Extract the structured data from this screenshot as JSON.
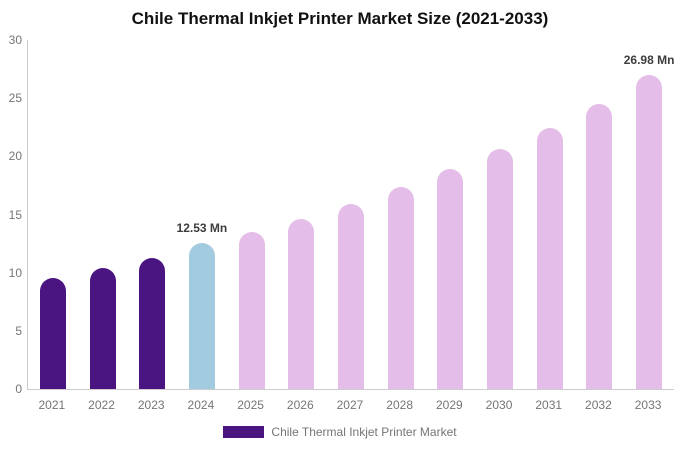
{
  "title": "Chile Thermal Inkjet Printer Market Size (2021-2033)",
  "colors": {
    "historical_bar": "#4B1581",
    "base_year_bar": "#A2CBE0",
    "forecast_bar": "#E4BDE8",
    "axis_line": "#cccccc",
    "tick_label": "#757575",
    "data_label": "#3c3c3c",
    "title_text": "#111111"
  },
  "legend": {
    "label": "Chile Thermal Inkjet Printer Market",
    "swatch_color": "#4B1581"
  },
  "chart_data": {
    "type": "bar",
    "title": "Chile Thermal Inkjet Printer Market Size (2021-2033)",
    "xlabel": "",
    "ylabel": "",
    "unit": "Mn",
    "categories": [
      "2021",
      "2022",
      "2023",
      "2024",
      "2025",
      "2026",
      "2027",
      "2028",
      "2029",
      "2030",
      "2031",
      "2032",
      "2033"
    ],
    "values": [
      9.5,
      10.4,
      11.3,
      12.53,
      13.5,
      14.6,
      15.9,
      17.4,
      18.9,
      20.6,
      22.4,
      24.5,
      26.98
    ],
    "bar_colors": [
      "#4B1581",
      "#4B1581",
      "#4B1581",
      "#A2CBE0",
      "#E4BDE8",
      "#E4BDE8",
      "#E4BDE8",
      "#E4BDE8",
      "#E4BDE8",
      "#E4BDE8",
      "#E4BDE8",
      "#E4BDE8",
      "#E4BDE8"
    ],
    "ylim": [
      0,
      30
    ],
    "y_ticks": [
      0,
      5,
      10,
      15,
      20,
      25,
      30
    ],
    "grid": false,
    "legend_position": "bottom",
    "data_labels": [
      {
        "category": "2024",
        "text": "12.53 Mn"
      },
      {
        "category": "2033",
        "text": "26.98 Mn"
      }
    ]
  }
}
